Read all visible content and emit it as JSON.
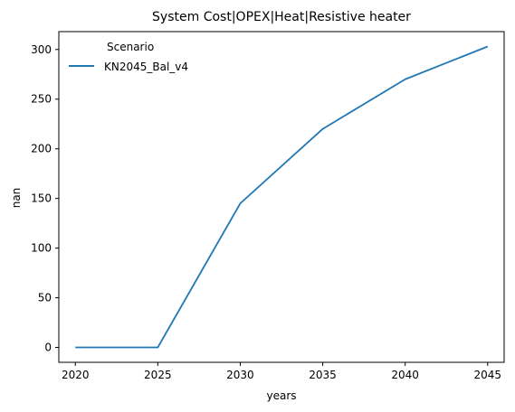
{
  "chart_data": {
    "type": "line",
    "title": "System Cost|OPEX|Heat|Resistive heater",
    "xlabel": "years",
    "ylabel": "nan",
    "x": [
      2020,
      2025,
      2030,
      2035,
      2040,
      2045
    ],
    "xlim": [
      2019,
      2046
    ],
    "ylim": [
      -15,
      318
    ],
    "xticks": [
      2020,
      2025,
      2030,
      2035,
      2040,
      2045
    ],
    "yticks": [
      0,
      50,
      100,
      150,
      200,
      250,
      300
    ],
    "grid": false,
    "legend": {
      "title": "Scenario",
      "placement": "upper left"
    },
    "series": [
      {
        "name": "KN2045_Bal_v4",
        "color": "#1f77b4",
        "values": [
          0,
          0,
          145,
          220,
          270,
          303
        ]
      }
    ]
  }
}
